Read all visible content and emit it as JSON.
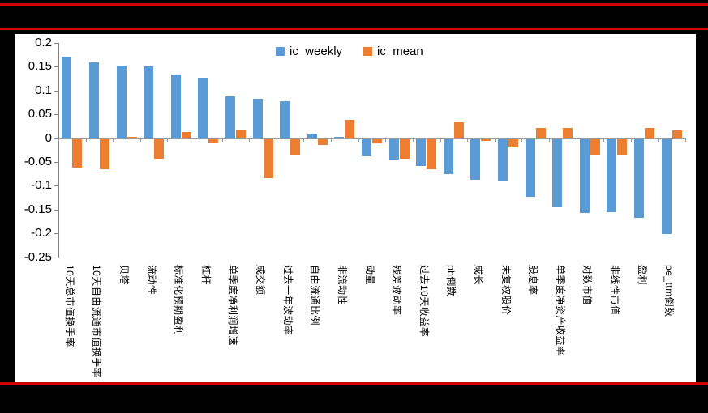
{
  "page": {
    "background_color": "#000000",
    "rule_color": "#CC0000",
    "panel_color": "#FFFFFF"
  },
  "chart_data": {
    "type": "bar",
    "title": "",
    "legend_position": "top-center",
    "grid": false,
    "ylim": [
      -0.25,
      0.2
    ],
    "ytick_labels": [
      "0.2",
      "0.15",
      "0.1",
      "0.05",
      "0",
      "-0.05",
      "-0.1",
      "-0.15",
      "-0.2",
      "-0.25"
    ],
    "yticks": [
      0.2,
      0.15,
      0.1,
      0.05,
      0,
      -0.05,
      -0.1,
      -0.15,
      -0.2,
      -0.25
    ],
    "axis_color": "#7F7F7F",
    "categories": [
      "10天总市值换手率",
      "10天自由流通市值换手率",
      "贝塔",
      "流动性",
      "标准化预期盈利",
      "杠杆",
      "单季度净利润增速",
      "成交额",
      "过去一年波动率",
      "自由流通比例",
      "非流动性",
      "动量",
      "残差波动率",
      "过去10天收益率",
      "pb倒数",
      "成长",
      "未复权股价",
      "股息率",
      "单季度净资产收益率",
      "对数市值",
      "非线性市值",
      "盈利",
      "pe_ttm倒数"
    ],
    "series": [
      {
        "name": "ic_weekly",
        "color": "#5B9BD5",
        "values": [
          0.171,
          0.16,
          0.153,
          0.151,
          0.133,
          0.127,
          0.087,
          0.082,
          0.078,
          0.009,
          0.002,
          -0.036,
          -0.043,
          -0.056,
          -0.074,
          -0.086,
          -0.089,
          -0.122,
          -0.144,
          -0.155,
          -0.154,
          -0.166,
          -0.199
        ]
      },
      {
        "name": "ic_mean",
        "color": "#ED7D31",
        "values": [
          -0.06,
          -0.063,
          0.003,
          -0.042,
          0.013,
          -0.008,
          0.018,
          -0.082,
          -0.034,
          -0.012,
          0.038,
          -0.009,
          -0.041,
          -0.064,
          0.033,
          -0.004,
          -0.017,
          0.021,
          0.021,
          -0.035,
          -0.034,
          0.022,
          0.016
        ]
      }
    ]
  }
}
